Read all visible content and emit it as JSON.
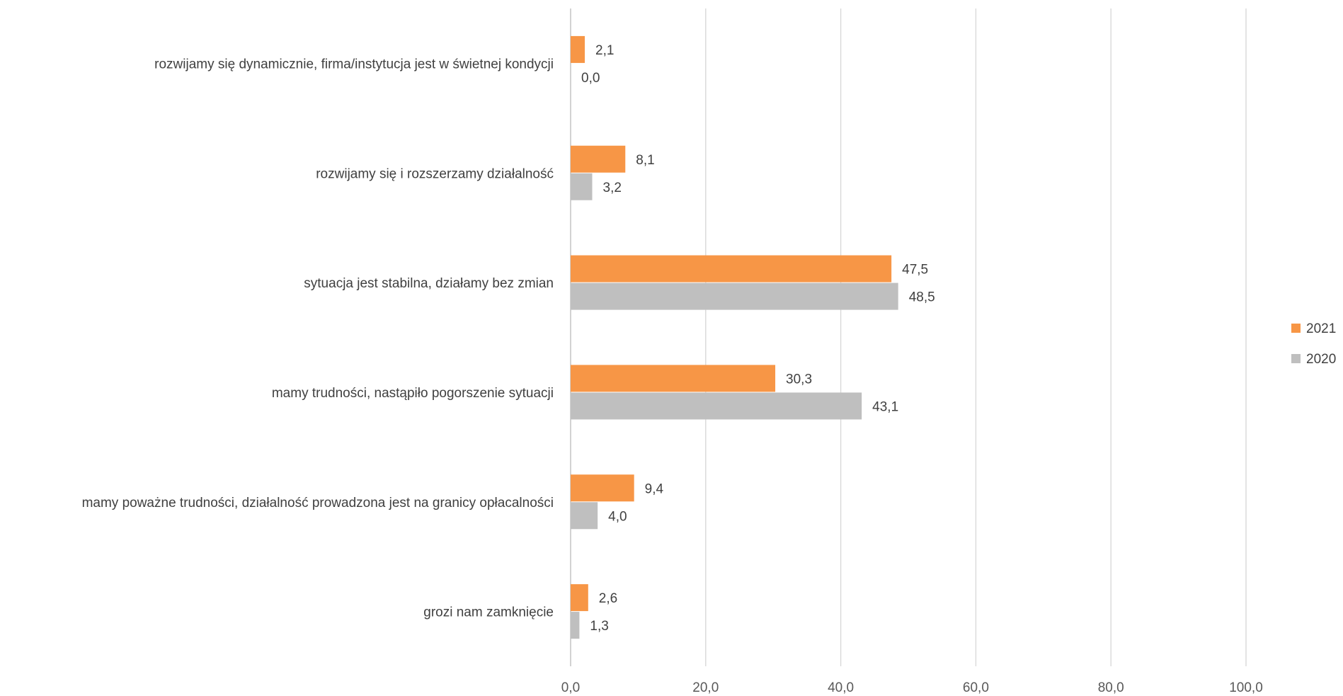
{
  "colors": {
    "series_2021": "#f79646",
    "series_2020": "#bfbfbf"
  },
  "chart_data": {
    "type": "bar",
    "orientation": "horizontal",
    "categories": [
      "rozwijamy się dynamicznie, firma/instytucja jest w świetnej kondycji",
      "rozwijamy się i rozszerzamy działalność",
      "sytuacja jest stabilna, działamy bez zmian",
      "mamy trudności, nastąpiło pogorszenie sytuacji",
      "mamy poważne trudności, działalność prowadzona jest na granicy opłacalności",
      "grozi nam zamknięcie"
    ],
    "series": [
      {
        "name": "2021",
        "values": [
          2.1,
          8.1,
          47.5,
          30.3,
          9.4,
          2.6
        ],
        "value_labels": [
          "2,1",
          "8,1",
          "47,5",
          "30,3",
          "9,4",
          "2,6"
        ]
      },
      {
        "name": "2020",
        "values": [
          0.0,
          3.2,
          48.5,
          43.1,
          4.0,
          1.3
        ],
        "value_labels": [
          "0,0",
          "3,2",
          "48,5",
          "43,1",
          "4,0",
          "1,3"
        ]
      }
    ],
    "xlim": [
      0,
      100
    ],
    "xticks": [
      0,
      20,
      40,
      60,
      80,
      100
    ],
    "xtick_labels": [
      "0,0",
      "20,0",
      "40,0",
      "60,0",
      "80,0",
      "100,0"
    ],
    "grid": true,
    "legend_position": "right"
  }
}
